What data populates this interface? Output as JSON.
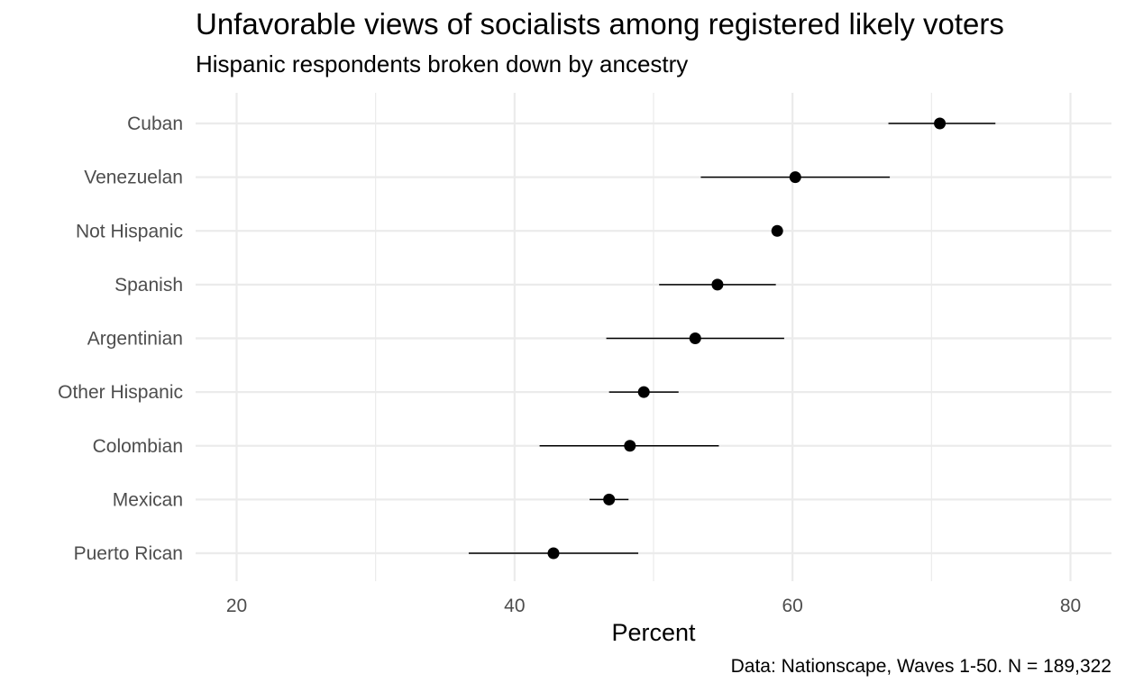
{
  "chart_data": {
    "type": "scatter",
    "title": "Unfavorable views of socialists among registered likely voters",
    "subtitle": "Hispanic respondents broken down by ancestry",
    "xlabel": "Percent",
    "ylabel": "",
    "caption": "Data: Nationscape, Waves 1-50. N =  189,322",
    "xlim": [
      17,
      83
    ],
    "x_ticks": [
      20,
      40,
      60,
      80
    ],
    "grid": true,
    "error_bars": true,
    "categories": [
      "Cuban",
      "Venezuelan",
      "Not Hispanic",
      "Spanish",
      "Argentinian",
      "Other Hispanic",
      "Colombian",
      "Mexican",
      "Puerto Rican"
    ],
    "values": [
      70.6,
      60.2,
      58.9,
      54.6,
      53.0,
      49.3,
      48.3,
      46.8,
      42.8
    ],
    "lower": [
      66.9,
      53.4,
      58.6,
      50.4,
      46.6,
      46.8,
      41.8,
      45.4,
      36.7
    ],
    "upper": [
      74.6,
      67.0,
      59.1,
      58.8,
      59.4,
      51.8,
      54.7,
      48.2,
      48.9
    ],
    "point_color": "#000000",
    "grid_color": "#ebebeb"
  }
}
